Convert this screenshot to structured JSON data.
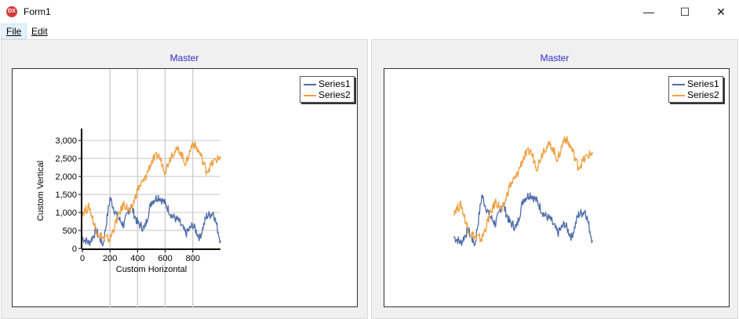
{
  "window": {
    "title": "Form1",
    "icon": "dx-app-icon",
    "minimize": "—",
    "maximize": "☐",
    "close": "✕"
  },
  "menu": {
    "items": [
      {
        "label": "File"
      },
      {
        "label": "Edit"
      }
    ]
  },
  "left_panel": {
    "title": "Master",
    "legend": [
      {
        "name": "Series1",
        "color": "#4f6ca8"
      },
      {
        "name": "Series2",
        "color": "#f0a040"
      }
    ]
  },
  "right_panel": {
    "title": "Master",
    "legend": [
      {
        "name": "Series1",
        "color": "#4f6ca8"
      },
      {
        "name": "Series2",
        "color": "#f0a040"
      }
    ]
  },
  "chart_data": [
    {
      "type": "line",
      "title": "Master",
      "xlabel": "Custom Horizontal",
      "ylabel": "Custom Vertical",
      "xlim": [
        0,
        1000
      ],
      "ylim": [
        0,
        3200
      ],
      "x_ticks": [
        "0",
        "200",
        "400",
        "600",
        "800"
      ],
      "y_ticks": [
        "0",
        "500",
        "1,000",
        "1,500",
        "2,000",
        "2,500",
        "3,000"
      ],
      "grid": true,
      "legend_position": "top-right",
      "x": [
        0,
        50,
        100,
        150,
        200,
        250,
        300,
        350,
        400,
        450,
        500,
        550,
        600,
        650,
        700,
        750,
        800,
        850,
        900,
        950,
        1000
      ],
      "series": [
        {
          "name": "Series1",
          "color": "#4f6ca8",
          "values": [
            300,
            150,
            500,
            100,
            1400,
            900,
            650,
            1200,
            700,
            550,
            1300,
            1450,
            1250,
            900,
            750,
            400,
            650,
            300,
            900,
            1000,
            200
          ]
        },
        {
          "name": "Series2",
          "color": "#f0a040",
          "values": [
            1000,
            1150,
            500,
            300,
            250,
            800,
            1250,
            1000,
            1650,
            1900,
            2400,
            2600,
            2150,
            2650,
            2750,
            2350,
            2950,
            2650,
            2150,
            2400,
            2550
          ]
        }
      ]
    },
    {
      "type": "line",
      "title": "Master",
      "xlim": [
        0,
        1000
      ],
      "ylim": [
        0,
        3200
      ],
      "grid": false,
      "legend_position": "top-right",
      "x": [
        0,
        50,
        100,
        150,
        200,
        250,
        300,
        350,
        400,
        450,
        500,
        550,
        600,
        650,
        700,
        750,
        800,
        850,
        900,
        950,
        1000
      ],
      "series": [
        {
          "name": "Series1",
          "color": "#4f6ca8",
          "values": [
            300,
            150,
            500,
            100,
            1400,
            900,
            650,
            1200,
            700,
            550,
            1300,
            1450,
            1250,
            900,
            750,
            400,
            650,
            300,
            900,
            1000,
            200
          ]
        },
        {
          "name": "Series2",
          "color": "#f0a040",
          "values": [
            1000,
            1150,
            500,
            300,
            250,
            800,
            1250,
            1000,
            1650,
            1900,
            2400,
            2600,
            2150,
            2650,
            2750,
            2350,
            2950,
            2650,
            2150,
            2400,
            2550
          ]
        }
      ]
    }
  ]
}
